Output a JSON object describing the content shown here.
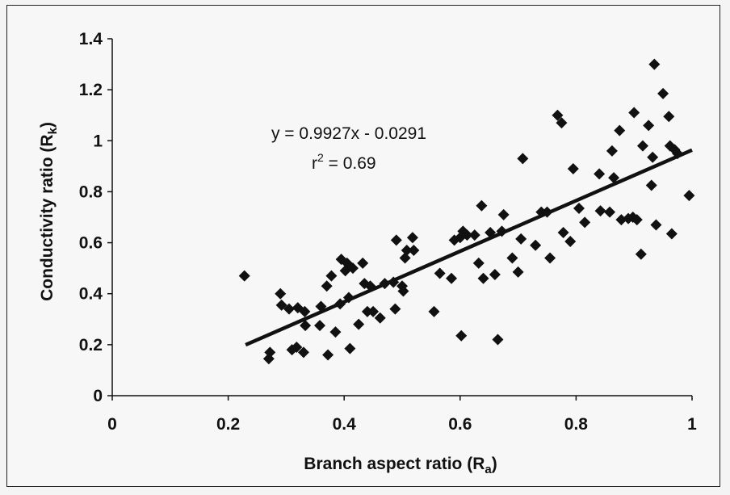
{
  "chart_data": {
    "type": "scatter",
    "xlabel": "Branch aspect ratio (Ra)",
    "xlabel_main": "Branch aspect ratio (R",
    "xlabel_sub": "a",
    "xlabel_close": ")",
    "ylabel": "Conductivity ratio (Rk)",
    "ylabel_main": "Conductivity ratio (R",
    "ylabel_sub": "k",
    "ylabel_close": ")",
    "xlim": [
      0,
      1
    ],
    "ylim": [
      0,
      1.4
    ],
    "x_ticks": [
      0,
      0.2,
      0.4,
      0.6,
      0.8,
      1
    ],
    "x_tick_labels": [
      "0",
      "0.2",
      "0.4",
      "0.6",
      "0.8",
      "1"
    ],
    "y_ticks": [
      0,
      0.2,
      0.4,
      0.6,
      0.8,
      1,
      1.2,
      1.4
    ],
    "y_tick_labels": [
      "0",
      "0.2",
      "0.4",
      "0.6",
      "0.8",
      "1",
      "1.2",
      "1.4"
    ],
    "grid": false,
    "legend": "none",
    "marker": "diamond",
    "color": "#111111",
    "annotations": {
      "equation": "y = 0.9927x - 0.0291",
      "r2_prefix": "r",
      "r2_sup": "2",
      "r2_value": " = 0.69"
    },
    "trendline": {
      "slope": 0.9927,
      "intercept": -0.0291,
      "x_range": [
        0.23,
        1.0
      ]
    },
    "points": [
      [
        0.228,
        0.47
      ],
      [
        0.27,
        0.145
      ],
      [
        0.272,
        0.17
      ],
      [
        0.29,
        0.4
      ],
      [
        0.292,
        0.355
      ],
      [
        0.305,
        0.34
      ],
      [
        0.31,
        0.18
      ],
      [
        0.318,
        0.19
      ],
      [
        0.32,
        0.345
      ],
      [
        0.33,
        0.17
      ],
      [
        0.332,
        0.33
      ],
      [
        0.333,
        0.275
      ],
      [
        0.358,
        0.275
      ],
      [
        0.36,
        0.35
      ],
      [
        0.37,
        0.43
      ],
      [
        0.372,
        0.16
      ],
      [
        0.378,
        0.47
      ],
      [
        0.385,
        0.25
      ],
      [
        0.393,
        0.36
      ],
      [
        0.395,
        0.535
      ],
      [
        0.402,
        0.49
      ],
      [
        0.405,
        0.52
      ],
      [
        0.408,
        0.385
      ],
      [
        0.41,
        0.185
      ],
      [
        0.415,
        0.5
      ],
      [
        0.425,
        0.28
      ],
      [
        0.432,
        0.52
      ],
      [
        0.435,
        0.44
      ],
      [
        0.44,
        0.33
      ],
      [
        0.445,
        0.43
      ],
      [
        0.45,
        0.33
      ],
      [
        0.462,
        0.305
      ],
      [
        0.47,
        0.44
      ],
      [
        0.485,
        0.445
      ],
      [
        0.488,
        0.34
      ],
      [
        0.49,
        0.61
      ],
      [
        0.5,
        0.43
      ],
      [
        0.502,
        0.41
      ],
      [
        0.505,
        0.54
      ],
      [
        0.508,
        0.57
      ],
      [
        0.518,
        0.62
      ],
      [
        0.52,
        0.57
      ],
      [
        0.555,
        0.33
      ],
      [
        0.565,
        0.48
      ],
      [
        0.585,
        0.46
      ],
      [
        0.59,
        0.61
      ],
      [
        0.6,
        0.62
      ],
      [
        0.602,
        0.235
      ],
      [
        0.605,
        0.645
      ],
      [
        0.612,
        0.63
      ],
      [
        0.625,
        0.63
      ],
      [
        0.632,
        0.52
      ],
      [
        0.637,
        0.745
      ],
      [
        0.64,
        0.46
      ],
      [
        0.652,
        0.64
      ],
      [
        0.66,
        0.475
      ],
      [
        0.665,
        0.22
      ],
      [
        0.672,
        0.645
      ],
      [
        0.675,
        0.71
      ],
      [
        0.69,
        0.54
      ],
      [
        0.7,
        0.485
      ],
      [
        0.705,
        0.615
      ],
      [
        0.708,
        0.93
      ],
      [
        0.73,
        0.59
      ],
      [
        0.74,
        0.72
      ],
      [
        0.75,
        0.72
      ],
      [
        0.755,
        0.54
      ],
      [
        0.768,
        1.1
      ],
      [
        0.775,
        1.07
      ],
      [
        0.778,
        0.64
      ],
      [
        0.79,
        0.605
      ],
      [
        0.795,
        0.89
      ],
      [
        0.805,
        0.735
      ],
      [
        0.815,
        0.68
      ],
      [
        0.84,
        0.87
      ],
      [
        0.842,
        0.725
      ],
      [
        0.858,
        0.72
      ],
      [
        0.862,
        0.96
      ],
      [
        0.865,
        0.855
      ],
      [
        0.875,
        1.04
      ],
      [
        0.878,
        0.69
      ],
      [
        0.89,
        0.695
      ],
      [
        0.898,
        0.7
      ],
      [
        0.9,
        1.11
      ],
      [
        0.905,
        0.69
      ],
      [
        0.912,
        0.555
      ],
      [
        0.915,
        0.98
      ],
      [
        0.925,
        1.06
      ],
      [
        0.93,
        0.825
      ],
      [
        0.932,
        0.935
      ],
      [
        0.935,
        1.3
      ],
      [
        0.938,
        0.67
      ],
      [
        0.95,
        1.185
      ],
      [
        0.96,
        1.095
      ],
      [
        0.962,
        0.98
      ],
      [
        0.965,
        0.635
      ],
      [
        0.97,
        0.965
      ],
      [
        0.975,
        0.95
      ],
      [
        0.995,
        0.785
      ]
    ]
  }
}
